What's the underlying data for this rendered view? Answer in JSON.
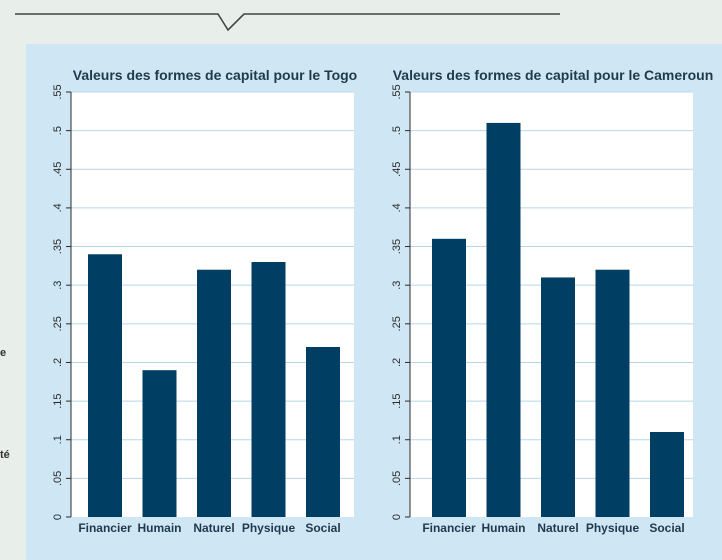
{
  "side_fragments": [
    "e",
    "té"
  ],
  "colors": {
    "panel": "#cfe7f5",
    "bar": "#003f63",
    "grid": "#b8d7ea",
    "axis": "#2b2b2b",
    "header_line": "#444444"
  },
  "chart_data": [
    {
      "type": "bar",
      "title": "Valeurs des formes de capital pour le Togo",
      "categories": [
        "Financier",
        "Humain",
        "Naturel",
        "Physique",
        "Social"
      ],
      "values": [
        0.34,
        0.19,
        0.32,
        0.33,
        0.22
      ],
      "ylim": [
        0,
        0.55
      ],
      "yticks": [
        0,
        0.05,
        0.1,
        0.15,
        0.2,
        0.25,
        0.3,
        0.35,
        0.4,
        0.45,
        0.5,
        0.55
      ],
      "ytick_labels": [
        "0",
        ".05",
        ".1",
        ".15",
        ".2",
        ".25",
        ".3",
        ".35",
        ".4",
        ".45",
        ".5",
        ".55"
      ],
      "grid": true
    },
    {
      "type": "bar",
      "title": "Valeurs des formes de capital pour le Cameroun",
      "categories": [
        "Financier",
        "Humain",
        "Naturel",
        "Physique",
        "Social"
      ],
      "values": [
        0.36,
        0.51,
        0.31,
        0.32,
        0.11
      ],
      "ylim": [
        0,
        0.55
      ],
      "yticks": [
        0,
        0.05,
        0.1,
        0.15,
        0.2,
        0.25,
        0.3,
        0.35,
        0.4,
        0.45,
        0.5,
        0.55
      ],
      "ytick_labels": [
        "0",
        ".05",
        ".1",
        ".15",
        ".2",
        ".25",
        ".3",
        ".35",
        ".4",
        ".45",
        ".5",
        ".55"
      ],
      "grid": true
    }
  ]
}
